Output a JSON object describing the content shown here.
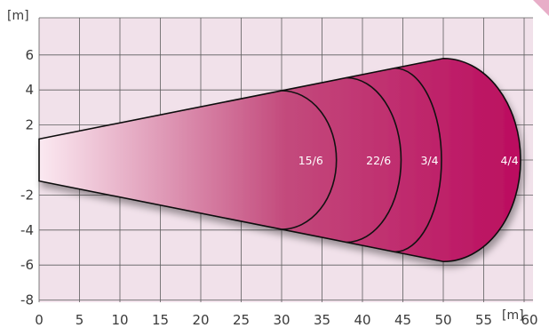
{
  "colors": {
    "grid_background": "#f1e1ea",
    "grid_line": "#5e5e5e",
    "beam_start": "#fbe9f1",
    "beam_mid": "#c34a7c",
    "beam_end": "#bb0a5e",
    "outline": "#111111",
    "label_text": "#ffffff",
    "corner_accent": "#e8aec8"
  },
  "chart_data": {
    "type": "area",
    "title": "",
    "xlabel": "[m]",
    "ylabel": "[m]",
    "xlim": [
      0,
      60
    ],
    "ylim": [
      -8,
      8
    ],
    "x_ticks": [
      0,
      5,
      10,
      15,
      20,
      25,
      30,
      35,
      40,
      45,
      50,
      55,
      60
    ],
    "y_ticks": [
      6,
      4,
      2,
      -2,
      -4,
      -6,
      -8
    ],
    "grid": true,
    "beam": {
      "origin_half_width": 1.2,
      "end_half_width": 5.8,
      "end_x": 50
    },
    "zones": [
      {
        "label": "15/6",
        "boundary_x": 37
      },
      {
        "label": "22/6",
        "boundary_x": 45
      },
      {
        "label": "3/4",
        "boundary_x": 50
      },
      {
        "label": "4/4",
        "boundary_x": 60
      }
    ]
  }
}
